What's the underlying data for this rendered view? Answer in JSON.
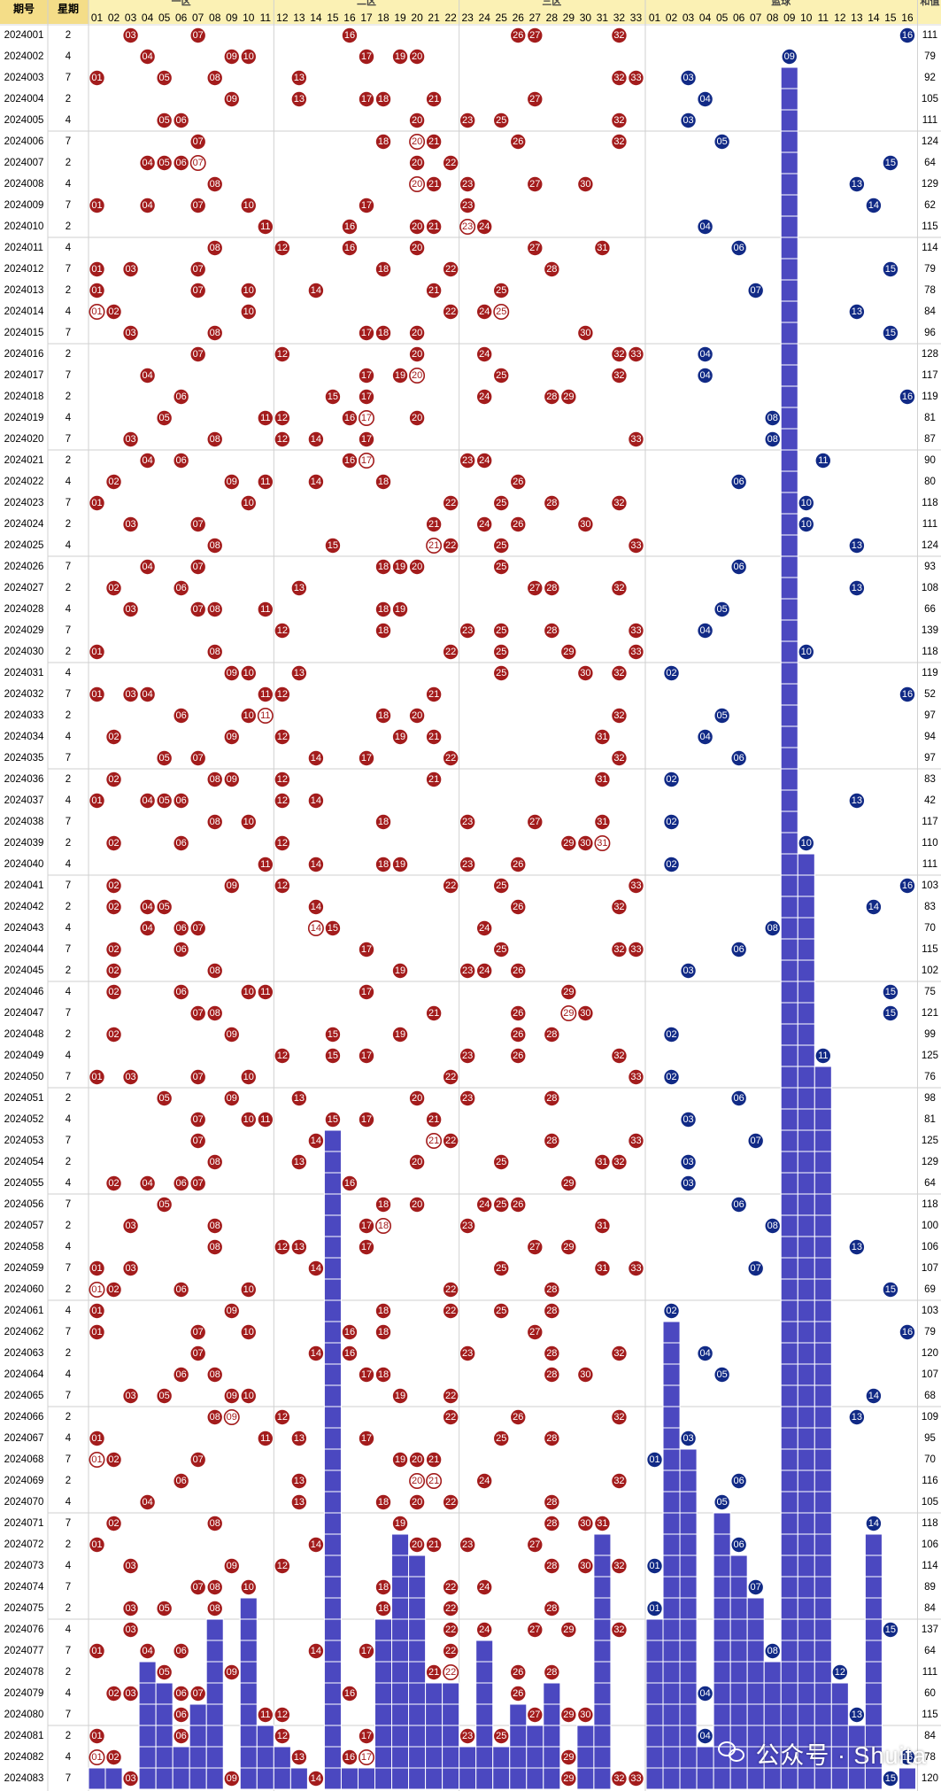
{
  "header": {
    "issue_label": "期号",
    "weekday_label": "星期",
    "zone1": "一区",
    "zone2": "二区",
    "zone3": "三区",
    "blue_label": "蓝球",
    "sum_label": "和值"
  },
  "watermark": {
    "text": "公众号 · Shuita"
  },
  "chart_data": {
    "type": "table",
    "red_numbers": 33,
    "blue_numbers": 16,
    "rows": [
      {
        "issue": "2024001",
        "weekday": "2",
        "red": [
          3,
          7,
          16,
          26,
          27,
          32
        ],
        "blue": 16
      },
      {
        "issue": "2024002",
        "weekday": "4",
        "red": [
          4,
          9,
          10,
          17,
          19,
          20
        ],
        "blue": 9
      },
      {
        "issue": "2024003",
        "weekday": "7",
        "red": [
          1,
          5,
          8,
          13,
          32,
          33
        ],
        "blue": 3
      },
      {
        "issue": "2024004",
        "weekday": "2",
        "red": [
          9,
          13,
          17,
          18,
          21,
          27
        ],
        "blue": 4
      },
      {
        "issue": "2024005",
        "weekday": "4",
        "red": [
          5,
          6,
          20,
          23,
          25,
          32
        ],
        "blue": 3
      },
      {
        "issue": "2024006",
        "weekday": "7",
        "red": [
          7,
          18,
          20,
          21,
          26,
          32
        ],
        "blue": 5
      },
      {
        "issue": "2024007",
        "weekday": "2",
        "red": [
          4,
          5,
          6,
          7,
          20,
          22
        ],
        "blue": 15
      },
      {
        "issue": "2024008",
        "weekday": "4",
        "red": [
          8,
          20,
          21,
          23,
          27,
          30
        ],
        "blue": 13
      },
      {
        "issue": "2024009",
        "weekday": "7",
        "red": [
          1,
          4,
          7,
          10,
          17,
          23
        ],
        "blue": 14
      },
      {
        "issue": "2024010",
        "weekday": "2",
        "red": [
          11,
          16,
          20,
          21,
          23,
          24
        ],
        "blue": 4
      },
      {
        "issue": "2024011",
        "weekday": "4",
        "red": [
          8,
          12,
          16,
          20,
          27,
          31
        ],
        "blue": 6
      },
      {
        "issue": "2024012",
        "weekday": "7",
        "red": [
          1,
          3,
          7,
          18,
          22,
          28
        ],
        "blue": 15
      },
      {
        "issue": "2024013",
        "weekday": "2",
        "red": [
          1,
          7,
          10,
          14,
          21,
          25
        ],
        "blue": 7
      },
      {
        "issue": "2024014",
        "weekday": "4",
        "red": [
          1,
          2,
          10,
          22,
          24,
          25
        ],
        "blue": 13
      },
      {
        "issue": "2024015",
        "weekday": "7",
        "red": [
          3,
          8,
          17,
          18,
          20,
          30
        ],
        "blue": 15
      },
      {
        "issue": "2024016",
        "weekday": "2",
        "red": [
          7,
          12,
          20,
          24,
          32,
          33
        ],
        "blue": 4
      },
      {
        "issue": "2024017",
        "weekday": "7",
        "red": [
          4,
          17,
          19,
          20,
          25,
          32
        ],
        "blue": 4
      },
      {
        "issue": "2024018",
        "weekday": "2",
        "red": [
          6,
          15,
          17,
          24,
          28,
          29
        ],
        "blue": 16
      },
      {
        "issue": "2024019",
        "weekday": "4",
        "red": [
          5,
          11,
          12,
          16,
          17,
          20
        ],
        "blue": 8
      },
      {
        "issue": "2024020",
        "weekday": "7",
        "red": [
          3,
          8,
          12,
          14,
          17,
          33
        ],
        "blue": 8
      },
      {
        "issue": "2024021",
        "weekday": "2",
        "red": [
          4,
          6,
          16,
          17,
          23,
          24
        ],
        "blue": 11
      },
      {
        "issue": "2024022",
        "weekday": "4",
        "red": [
          2,
          9,
          11,
          14,
          18,
          26
        ],
        "blue": 6
      },
      {
        "issue": "2024023",
        "weekday": "7",
        "red": [
          1,
          10,
          22,
          25,
          28,
          32
        ],
        "blue": 10
      },
      {
        "issue": "2024024",
        "weekday": "2",
        "red": [
          3,
          7,
          21,
          24,
          26,
          30
        ],
        "blue": 10
      },
      {
        "issue": "2024025",
        "weekday": "4",
        "red": [
          8,
          15,
          21,
          22,
          25,
          33
        ],
        "blue": 13
      },
      {
        "issue": "2024026",
        "weekday": "7",
        "red": [
          4,
          7,
          18,
          19,
          20,
          25
        ],
        "blue": 6
      },
      {
        "issue": "2024027",
        "weekday": "2",
        "red": [
          2,
          6,
          13,
          27,
          28,
          32
        ],
        "blue": 13
      },
      {
        "issue": "2024028",
        "weekday": "4",
        "red": [
          3,
          7,
          8,
          11,
          18,
          19
        ],
        "blue": 5
      },
      {
        "issue": "2024029",
        "weekday": "7",
        "red": [
          12,
          18,
          23,
          25,
          28,
          33
        ],
        "blue": 4
      },
      {
        "issue": "2024030",
        "weekday": "2",
        "red": [
          1,
          8,
          22,
          25,
          29,
          33
        ],
        "blue": 10
      },
      {
        "issue": "2024031",
        "weekday": "4",
        "red": [
          9,
          10,
          13,
          25,
          30,
          32
        ],
        "blue": 2
      },
      {
        "issue": "2024032",
        "weekday": "7",
        "red": [
          1,
          3,
          4,
          11,
          12,
          21
        ],
        "blue": 16
      },
      {
        "issue": "2024033",
        "weekday": "2",
        "red": [
          6,
          10,
          11,
          18,
          20,
          32
        ],
        "blue": 5
      },
      {
        "issue": "2024034",
        "weekday": "4",
        "red": [
          2,
          9,
          12,
          19,
          21,
          31
        ],
        "blue": 4
      },
      {
        "issue": "2024035",
        "weekday": "7",
        "red": [
          5,
          7,
          14,
          17,
          22,
          32
        ],
        "blue": 6
      },
      {
        "issue": "2024036",
        "weekday": "2",
        "red": [
          2,
          8,
          9,
          12,
          21,
          31
        ],
        "blue": 2
      },
      {
        "issue": "2024037",
        "weekday": "4",
        "red": [
          1,
          4,
          5,
          6,
          12,
          14
        ],
        "blue": 13
      },
      {
        "issue": "2024038",
        "weekday": "7",
        "red": [
          8,
          10,
          18,
          23,
          27,
          31
        ],
        "blue": 2
      },
      {
        "issue": "2024039",
        "weekday": "2",
        "red": [
          2,
          6,
          12,
          29,
          30,
          31
        ],
        "blue": 10
      },
      {
        "issue": "2024040",
        "weekday": "4",
        "red": [
          11,
          14,
          18,
          19,
          23,
          26
        ],
        "blue": 2
      },
      {
        "issue": "2024041",
        "weekday": "7",
        "red": [
          2,
          9,
          12,
          22,
          25,
          33
        ],
        "blue": 16
      },
      {
        "issue": "2024042",
        "weekday": "2",
        "red": [
          2,
          4,
          5,
          14,
          26,
          32
        ],
        "blue": 14
      },
      {
        "issue": "2024043",
        "weekday": "4",
        "red": [
          4,
          6,
          7,
          14,
          15,
          24
        ],
        "blue": 8
      },
      {
        "issue": "2024044",
        "weekday": "7",
        "red": [
          2,
          6,
          17,
          25,
          32,
          33
        ],
        "blue": 6
      },
      {
        "issue": "2024045",
        "weekday": "2",
        "red": [
          2,
          8,
          19,
          23,
          24,
          26
        ],
        "blue": 3
      },
      {
        "issue": "2024046",
        "weekday": "4",
        "red": [
          2,
          6,
          10,
          11,
          17,
          29
        ],
        "blue": 15
      },
      {
        "issue": "2024047",
        "weekday": "7",
        "red": [
          7,
          8,
          21,
          26,
          29,
          30
        ],
        "blue": 15
      },
      {
        "issue": "2024048",
        "weekday": "2",
        "red": [
          2,
          9,
          15,
          19,
          26,
          28
        ],
        "blue": 2
      },
      {
        "issue": "2024049",
        "weekday": "4",
        "red": [
          12,
          15,
          17,
          23,
          26,
          32
        ],
        "blue": 11
      },
      {
        "issue": "2024050",
        "weekday": "7",
        "red": [
          1,
          3,
          7,
          10,
          22,
          33
        ],
        "blue": 2
      },
      {
        "issue": "2024051",
        "weekday": "2",
        "red": [
          5,
          9,
          13,
          20,
          23,
          28
        ],
        "blue": 6
      },
      {
        "issue": "2024052",
        "weekday": "4",
        "red": [
          7,
          10,
          11,
          15,
          17,
          21
        ],
        "blue": 3
      },
      {
        "issue": "2024053",
        "weekday": "7",
        "red": [
          7,
          14,
          21,
          22,
          28,
          33
        ],
        "blue": 7
      },
      {
        "issue": "2024054",
        "weekday": "2",
        "red": [
          8,
          13,
          20,
          25,
          31,
          32
        ],
        "blue": 3
      },
      {
        "issue": "2024055",
        "weekday": "4",
        "red": [
          2,
          4,
          6,
          7,
          16,
          29
        ],
        "blue": 3
      },
      {
        "issue": "2024056",
        "weekday": "7",
        "red": [
          5,
          18,
          20,
          24,
          25,
          26
        ],
        "blue": 6
      },
      {
        "issue": "2024057",
        "weekday": "2",
        "red": [
          3,
          8,
          17,
          18,
          23,
          31
        ],
        "blue": 8
      },
      {
        "issue": "2024058",
        "weekday": "4",
        "red": [
          8,
          12,
          13,
          17,
          27,
          29
        ],
        "blue": 13
      },
      {
        "issue": "2024059",
        "weekday": "7",
        "red": [
          1,
          3,
          14,
          25,
          31,
          33
        ],
        "blue": 7
      },
      {
        "issue": "2024060",
        "weekday": "2",
        "red": [
          1,
          2,
          6,
          10,
          22,
          28
        ],
        "blue": 15
      },
      {
        "issue": "2024061",
        "weekday": "4",
        "red": [
          1,
          9,
          18,
          22,
          25,
          28
        ],
        "blue": 2
      },
      {
        "issue": "2024062",
        "weekday": "7",
        "red": [
          1,
          7,
          10,
          16,
          18,
          27
        ],
        "blue": 16
      },
      {
        "issue": "2024063",
        "weekday": "2",
        "red": [
          7,
          14,
          16,
          23,
          28,
          32
        ],
        "blue": 4
      },
      {
        "issue": "2024064",
        "weekday": "4",
        "red": [
          6,
          8,
          17,
          18,
          28,
          30
        ],
        "blue": 5
      },
      {
        "issue": "2024065",
        "weekday": "7",
        "red": [
          3,
          5,
          9,
          10,
          19,
          22
        ],
        "blue": 14
      },
      {
        "issue": "2024066",
        "weekday": "2",
        "red": [
          8,
          9,
          12,
          22,
          26,
          32
        ],
        "blue": 13
      },
      {
        "issue": "2024067",
        "weekday": "4",
        "red": [
          1,
          11,
          13,
          17,
          25,
          28
        ],
        "blue": 3
      },
      {
        "issue": "2024068",
        "weekday": "7",
        "red": [
          1,
          2,
          7,
          19,
          20,
          21
        ],
        "blue": 1
      },
      {
        "issue": "2024069",
        "weekday": "2",
        "red": [
          6,
          13,
          20,
          21,
          24,
          32
        ],
        "blue": 6
      },
      {
        "issue": "2024070",
        "weekday": "4",
        "red": [
          4,
          13,
          18,
          20,
          22,
          28
        ],
        "blue": 5
      },
      {
        "issue": "2024071",
        "weekday": "7",
        "red": [
          2,
          8,
          19,
          28,
          30,
          31
        ],
        "blue": 14
      },
      {
        "issue": "2024072",
        "weekday": "2",
        "red": [
          1,
          14,
          20,
          21,
          23,
          27
        ],
        "blue": 6
      },
      {
        "issue": "2024073",
        "weekday": "4",
        "red": [
          3,
          9,
          12,
          28,
          30,
          32
        ],
        "blue": 1
      },
      {
        "issue": "2024074",
        "weekday": "7",
        "red": [
          7,
          8,
          10,
          18,
          22,
          24
        ],
        "blue": 7
      },
      {
        "issue": "2024075",
        "weekday": "2",
        "red": [
          3,
          5,
          8,
          18,
          22,
          28
        ],
        "blue": 1
      },
      {
        "issue": "2024076",
        "weekday": "4",
        "red": [
          3,
          22,
          24,
          27,
          29,
          32
        ],
        "blue": 15
      },
      {
        "issue": "2024077",
        "weekday": "7",
        "red": [
          1,
          4,
          6,
          14,
          17,
          22
        ],
        "blue": 8
      },
      {
        "issue": "2024078",
        "weekday": "2",
        "red": [
          5,
          9,
          21,
          22,
          26,
          28
        ],
        "blue": 12
      },
      {
        "issue": "2024079",
        "weekday": "4",
        "red": [
          2,
          3,
          6,
          7,
          16,
          26
        ],
        "blue": 4
      },
      {
        "issue": "2024080",
        "weekday": "7",
        "red": [
          6,
          11,
          12,
          27,
          29,
          30
        ],
        "blue": 13
      },
      {
        "issue": "2024081",
        "weekday": "2",
        "red": [
          1,
          6,
          12,
          17,
          23,
          25
        ],
        "blue": 4
      },
      {
        "issue": "2024082",
        "weekday": "4",
        "red": [
          1,
          2,
          13,
          16,
          17,
          29
        ],
        "blue": 16
      },
      {
        "issue": "2024083",
        "weekday": "7",
        "red": [
          3,
          9,
          14,
          29,
          32,
          33
        ],
        "blue": 15
      }
    ]
  }
}
